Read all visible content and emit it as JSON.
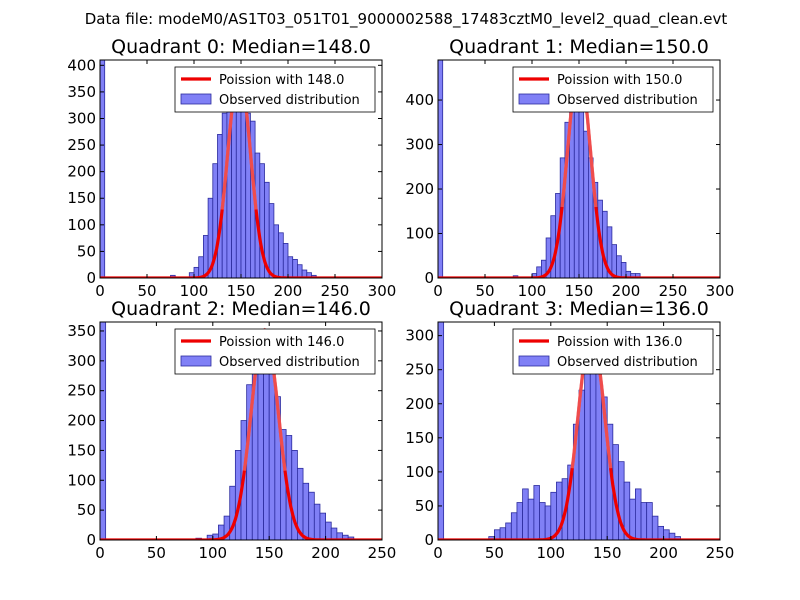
{
  "suptitle": "Data file: modeM0/AS1T03_051T01_9000002588_17483cztM0_level2_quad_clean.evt",
  "colors": {
    "bar_fill": "#8080f6",
    "bar_edge": "#2b2b9e",
    "line": "#ee0000",
    "line_faded": "#f08a8a"
  },
  "chart_data": [
    {
      "type": "bar",
      "title": "Quadrant 0: Median=148.0",
      "xlim": [
        0,
        300
      ],
      "ylim": [
        0,
        410
      ],
      "xticks": [
        0,
        50,
        100,
        150,
        200,
        250,
        300
      ],
      "yticks": [
        0,
        50,
        100,
        150,
        200,
        250,
        300,
        350,
        400
      ],
      "legend": [
        "Poission with 148.0",
        "Observed distribution"
      ],
      "bin_width": 5,
      "bins": [
        [
          0,
          410
        ],
        [
          75,
          5
        ],
        [
          95,
          10
        ],
        [
          100,
          20
        ],
        [
          105,
          40
        ],
        [
          110,
          80
        ],
        [
          115,
          150
        ],
        [
          120,
          215
        ],
        [
          125,
          270
        ],
        [
          130,
          310
        ],
        [
          135,
          375
        ],
        [
          140,
          390
        ],
        [
          145,
          365
        ],
        [
          150,
          340
        ],
        [
          155,
          310
        ],
        [
          160,
          295
        ],
        [
          165,
          235
        ],
        [
          170,
          215
        ],
        [
          175,
          180
        ],
        [
          180,
          140
        ],
        [
          185,
          100
        ],
        [
          190,
          85
        ],
        [
          195,
          65
        ],
        [
          200,
          40
        ],
        [
          205,
          35
        ],
        [
          210,
          25
        ],
        [
          215,
          15
        ],
        [
          220,
          10
        ],
        [
          225,
          5
        ]
      ],
      "poisson_mean": 148,
      "poisson_peak": 385
    },
    {
      "type": "bar",
      "title": "Quadrant 1: Median=150.0",
      "xlim": [
        0,
        300
      ],
      "ylim": [
        0,
        490
      ],
      "xticks": [
        0,
        50,
        100,
        150,
        200,
        250,
        300
      ],
      "yticks": [
        0,
        100,
        200,
        300,
        400
      ],
      "legend": [
        "Poission with 150.0",
        "Observed distribution"
      ],
      "bin_width": 5,
      "bins": [
        [
          0,
          490
        ],
        [
          80,
          5
        ],
        [
          100,
          10
        ],
        [
          105,
          25
        ],
        [
          110,
          40
        ],
        [
          115,
          90
        ],
        [
          120,
          140
        ],
        [
          125,
          190
        ],
        [
          130,
          270
        ],
        [
          135,
          350
        ],
        [
          140,
          440
        ],
        [
          145,
          405
        ],
        [
          150,
          405
        ],
        [
          155,
          330
        ],
        [
          160,
          270
        ],
        [
          165,
          215
        ],
        [
          170,
          175
        ],
        [
          175,
          150
        ],
        [
          180,
          115
        ],
        [
          185,
          75
        ],
        [
          190,
          50
        ],
        [
          195,
          35
        ],
        [
          200,
          15
        ],
        [
          205,
          10
        ],
        [
          210,
          10
        ]
      ],
      "poisson_mean": 150,
      "poisson_peak": 470
    },
    {
      "type": "bar",
      "title": "Quadrant 2: Median=146.0",
      "xlim": [
        0,
        250
      ],
      "ylim": [
        0,
        365
      ],
      "xticks": [
        0,
        50,
        100,
        150,
        200,
        250
      ],
      "yticks": [
        0,
        50,
        100,
        150,
        200,
        250,
        300,
        350
      ],
      "legend": [
        "Poission with 146.0",
        "Observed distribution"
      ],
      "bin_width": 5,
      "bins": [
        [
          0,
          365
        ],
        [
          85,
          3
        ],
        [
          95,
          8
        ],
        [
          100,
          10
        ],
        [
          105,
          25
        ],
        [
          110,
          40
        ],
        [
          115,
          90
        ],
        [
          120,
          150
        ],
        [
          125,
          200
        ],
        [
          130,
          260
        ],
        [
          135,
          290
        ],
        [
          140,
          340
        ],
        [
          145,
          345
        ],
        [
          150,
          320
        ],
        [
          155,
          240
        ],
        [
          160,
          185
        ],
        [
          165,
          175
        ],
        [
          170,
          150
        ],
        [
          175,
          120
        ],
        [
          180,
          95
        ],
        [
          185,
          80
        ],
        [
          190,
          60
        ],
        [
          195,
          45
        ],
        [
          200,
          30
        ],
        [
          205,
          20
        ],
        [
          210,
          12
        ],
        [
          215,
          8
        ],
        [
          220,
          5
        ]
      ],
      "poisson_mean": 146,
      "poisson_peak": 352
    },
    {
      "type": "bar",
      "title": "Quadrant 3: Median=136.0",
      "xlim": [
        0,
        250
      ],
      "ylim": [
        0,
        320
      ],
      "xticks": [
        0,
        50,
        100,
        150,
        200,
        250
      ],
      "yticks": [
        0,
        50,
        100,
        150,
        200,
        250,
        300
      ],
      "legend": [
        "Poission with 136.0",
        "Observed distribution"
      ],
      "bin_width": 5,
      "bins": [
        [
          0,
          320
        ],
        [
          45,
          5
        ],
        [
          50,
          15
        ],
        [
          55,
          18
        ],
        [
          60,
          25
        ],
        [
          65,
          40
        ],
        [
          70,
          55
        ],
        [
          75,
          75
        ],
        [
          80,
          60
        ],
        [
          85,
          80
        ],
        [
          90,
          55
        ],
        [
          95,
          50
        ],
        [
          100,
          70
        ],
        [
          105,
          85
        ],
        [
          110,
          90
        ],
        [
          115,
          110
        ],
        [
          120,
          170
        ],
        [
          125,
          220
        ],
        [
          130,
          250
        ],
        [
          135,
          280
        ],
        [
          140,
          265
        ],
        [
          145,
          210
        ],
        [
          150,
          170
        ],
        [
          155,
          140
        ],
        [
          160,
          115
        ],
        [
          165,
          85
        ],
        [
          170,
          60
        ],
        [
          175,
          75
        ],
        [
          180,
          55
        ],
        [
          185,
          55
        ],
        [
          190,
          35
        ],
        [
          195,
          20
        ],
        [
          200,
          15
        ],
        [
          205,
          10
        ],
        [
          210,
          5
        ]
      ],
      "poisson_mean": 136,
      "poisson_peak": 305
    }
  ]
}
